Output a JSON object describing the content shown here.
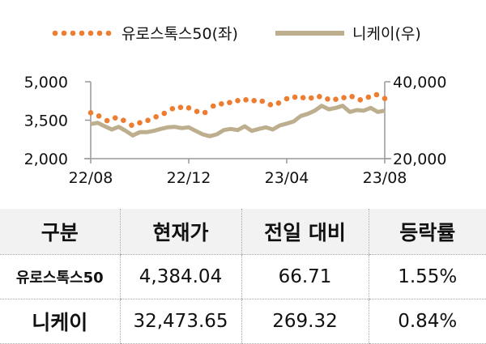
{
  "chart_data": {
    "type": "line",
    "x_tick_labels": [
      "22/08",
      "22/12",
      "23/04",
      "23/08"
    ],
    "x_range_months": [
      0,
      12
    ],
    "left_axis": {
      "ticks": [
        "5,000",
        "3,500",
        "2,000"
      ],
      "range": [
        2000,
        5000
      ]
    },
    "right_axis": {
      "ticks": [
        "40,000",
        "20,000"
      ],
      "range": [
        20000,
        40000
      ]
    },
    "legend_position": "top",
    "series": [
      {
        "name": "유로스톡스50(좌)",
        "axis": "left",
        "style": "dotted",
        "color": "#ED7D31",
        "values": [
          3790,
          3664,
          3484,
          3590,
          3495,
          3305,
          3400,
          3495,
          3632,
          3768,
          3948,
          4000,
          3979,
          3842,
          3800,
          4053,
          4137,
          4190,
          4263,
          4295,
          4263,
          4242,
          4105,
          4168,
          4337,
          4400,
          4379,
          4368,
          4421,
          4326,
          4316,
          4379,
          4421,
          4295,
          4400,
          4495,
          4347
        ]
      },
      {
        "name": "니케이(우)",
        "axis": "right",
        "style": "solid",
        "color": "#BDAE8E",
        "values": [
          28990,
          29330,
          28420,
          27580,
          28280,
          27220,
          26040,
          26880,
          26880,
          27220,
          27720,
          28150,
          28280,
          27930,
          28150,
          27220,
          26320,
          25830,
          26320,
          27430,
          27720,
          27430,
          28420,
          27220,
          27720,
          28150,
          27580,
          28630,
          29120,
          29680,
          31100,
          31640,
          32490,
          33750,
          32840,
          33200,
          33750,
          32140,
          32630,
          32490,
          33200,
          32140,
          32490
        ]
      }
    ]
  },
  "table": {
    "headers": [
      "구분",
      "현재가",
      "전일 대비",
      "등락률"
    ],
    "rows": [
      {
        "name": "유로스톡스50",
        "price": "4,384.04",
        "change": "66.71",
        "rate": "1.55%"
      },
      {
        "name": "니케이",
        "price": "32,473.65",
        "change": "269.32",
        "rate": "0.84%"
      }
    ]
  }
}
